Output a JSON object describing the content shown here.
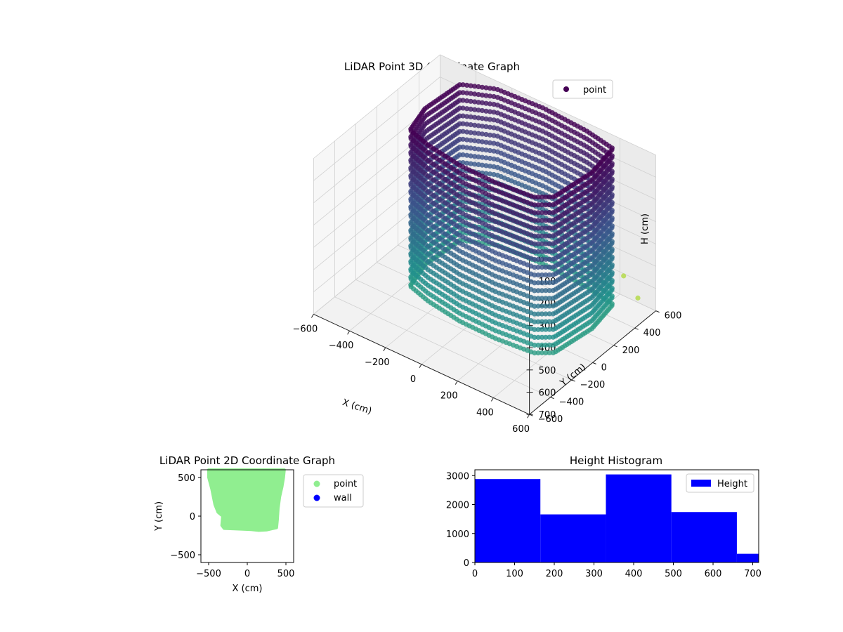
{
  "chart_data": [
    {
      "type": "scatter",
      "title": "LiDAR Point 3D Coordinate Graph",
      "xlabel": "X (cm)",
      "ylabel": "Y (cm)",
      "zlabel": "H (cm)",
      "xlim": [
        -600,
        600
      ],
      "ylim": [
        -600,
        600
      ],
      "zlim": [
        700,
        0
      ],
      "x_ticks": [
        -600,
        -400,
        -200,
        0,
        200,
        400,
        600
      ],
      "y_ticks": [
        -600,
        -400,
        -200,
        0,
        200,
        400,
        600
      ],
      "z_ticks": [
        0,
        100,
        200,
        300,
        400,
        500,
        600,
        700
      ],
      "legend": {
        "position": "top-right",
        "entries": [
          {
            "label": "point",
            "color": "#440154"
          }
        ]
      },
      "colormap": "viridis",
      "grid": true,
      "series": [
        {
          "name": "point",
          "shape": "closed ring of vertical point columns (scanned room walls)",
          "x_range": [
            -450,
            450
          ],
          "y_range": [
            -150,
            550
          ],
          "h_range": [
            0,
            700
          ],
          "outline": [
            {
              "x": -420,
              "y": 150
            },
            {
              "x": -400,
              "y": 450
            },
            {
              "x": -250,
              "y": 540
            },
            {
              "x": 0,
              "y": 560
            },
            {
              "x": 250,
              "y": 540
            },
            {
              "x": 420,
              "y": 500
            },
            {
              "x": 450,
              "y": 250
            },
            {
              "x": 420,
              "y": -60
            },
            {
              "x": 350,
              "y": -130
            },
            {
              "x": 150,
              "y": -155
            },
            {
              "x": -50,
              "y": -150
            },
            {
              "x": -250,
              "y": -110
            },
            {
              "x": -380,
              "y": -60
            }
          ],
          "outliers": [
            {
              "x": 450,
              "y": 550,
              "h": 580
            },
            {
              "x": 500,
              "y": 600,
              "h": 680
            }
          ]
        }
      ]
    },
    {
      "type": "scatter",
      "title": "LiDAR Point 2D Coordinate Graph",
      "xlabel": "X (cm)",
      "ylabel": "Y (cm)",
      "xlim": [
        -600,
        600
      ],
      "ylim": [
        -600,
        600
      ],
      "x_ticks": [
        -500,
        0,
        500
      ],
      "y_ticks": [
        -500,
        0,
        500
      ],
      "legend": {
        "position": "outside-right",
        "entries": [
          {
            "label": "point",
            "color": "#90ee90"
          },
          {
            "label": "wall",
            "color": "#0000ff"
          }
        ]
      },
      "series": [
        {
          "name": "point",
          "color": "#90ee90",
          "outline": [
            {
              "x": -500,
              "y": 600
            },
            {
              "x": 480,
              "y": 600
            },
            {
              "x": 470,
              "y": 500
            },
            {
              "x": 450,
              "y": 380
            },
            {
              "x": 420,
              "y": 250
            },
            {
              "x": 400,
              "y": 100
            },
            {
              "x": 390,
              "y": -50
            },
            {
              "x": 380,
              "y": -150
            },
            {
              "x": 250,
              "y": -180
            },
            {
              "x": 150,
              "y": -185
            },
            {
              "x": 50,
              "y": -175
            },
            {
              "x": -50,
              "y": -170
            },
            {
              "x": -300,
              "y": -160
            },
            {
              "x": -330,
              "y": -120
            },
            {
              "x": -320,
              "y": 0
            },
            {
              "x": -380,
              "y": 50
            },
            {
              "x": -420,
              "y": 150
            },
            {
              "x": -460,
              "y": 350
            },
            {
              "x": -500,
              "y": 500
            }
          ]
        },
        {
          "name": "wall",
          "color": "#0000ff",
          "outline": []
        }
      ]
    },
    {
      "type": "bar",
      "title": "Height Histogram",
      "xlabel": "",
      "ylabel": "",
      "xlim": [
        0,
        715
      ],
      "ylim": [
        0,
        3200
      ],
      "x_ticks": [
        0,
        100,
        200,
        300,
        400,
        500,
        600,
        700
      ],
      "y_ticks": [
        0,
        1000,
        2000,
        3000
      ],
      "bin_edges": [
        0,
        165,
        330,
        495,
        660,
        715
      ],
      "values": [
        2880,
        1660,
        3040,
        1740,
        300
      ],
      "color": "#0000ff",
      "legend": {
        "position": "top-right",
        "entries": [
          {
            "label": "Height",
            "color": "#0000ff"
          }
        ]
      }
    }
  ]
}
